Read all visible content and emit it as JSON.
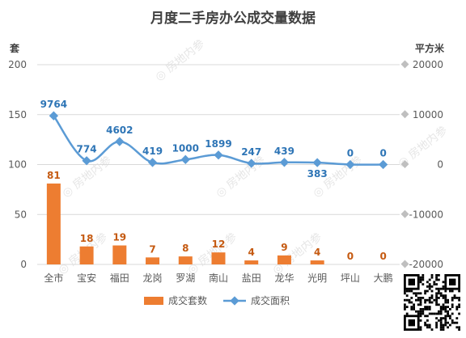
{
  "watermark": "房地内参",
  "colors": {
    "bar": "#ED7D31",
    "line": "#5B9BD5",
    "grid": "#D9D9D9",
    "axis_text": "#595959",
    "title": "#404040",
    "bar_label": "#C55A11",
    "line_label": "#2E75B6",
    "watermark": "#E6E6E6"
  },
  "chart_data": {
    "type": "bar+line",
    "title": "月度二手房办公成交量数据",
    "categories": [
      "全市",
      "宝安",
      "福田",
      "龙岗",
      "罗湖",
      "南山",
      "盐田",
      "龙华",
      "光明",
      "坪山",
      "大鹏"
    ],
    "y_left": {
      "unit_label": "套",
      "min": 0,
      "max": 200,
      "ticks": [
        0,
        50,
        100,
        150,
        200
      ]
    },
    "y_right": {
      "unit_label": "平方米",
      "min": -20000,
      "max": 20000,
      "ticks": [
        -20000,
        -10000,
        0,
        10000,
        20000
      ]
    },
    "series": [
      {
        "name": "成交套数",
        "type": "bar",
        "axis": "left",
        "values": [
          81,
          18,
          19,
          7,
          8,
          12,
          4,
          9,
          4,
          0,
          0
        ]
      },
      {
        "name": "成交面积",
        "type": "line",
        "axis": "right",
        "smooth": true,
        "values": [
          9764,
          774,
          4602,
          419,
          1000,
          1899,
          247,
          439,
          383,
          0,
          0
        ]
      }
    ],
    "legend_position": "bottom-center",
    "grid": true
  }
}
